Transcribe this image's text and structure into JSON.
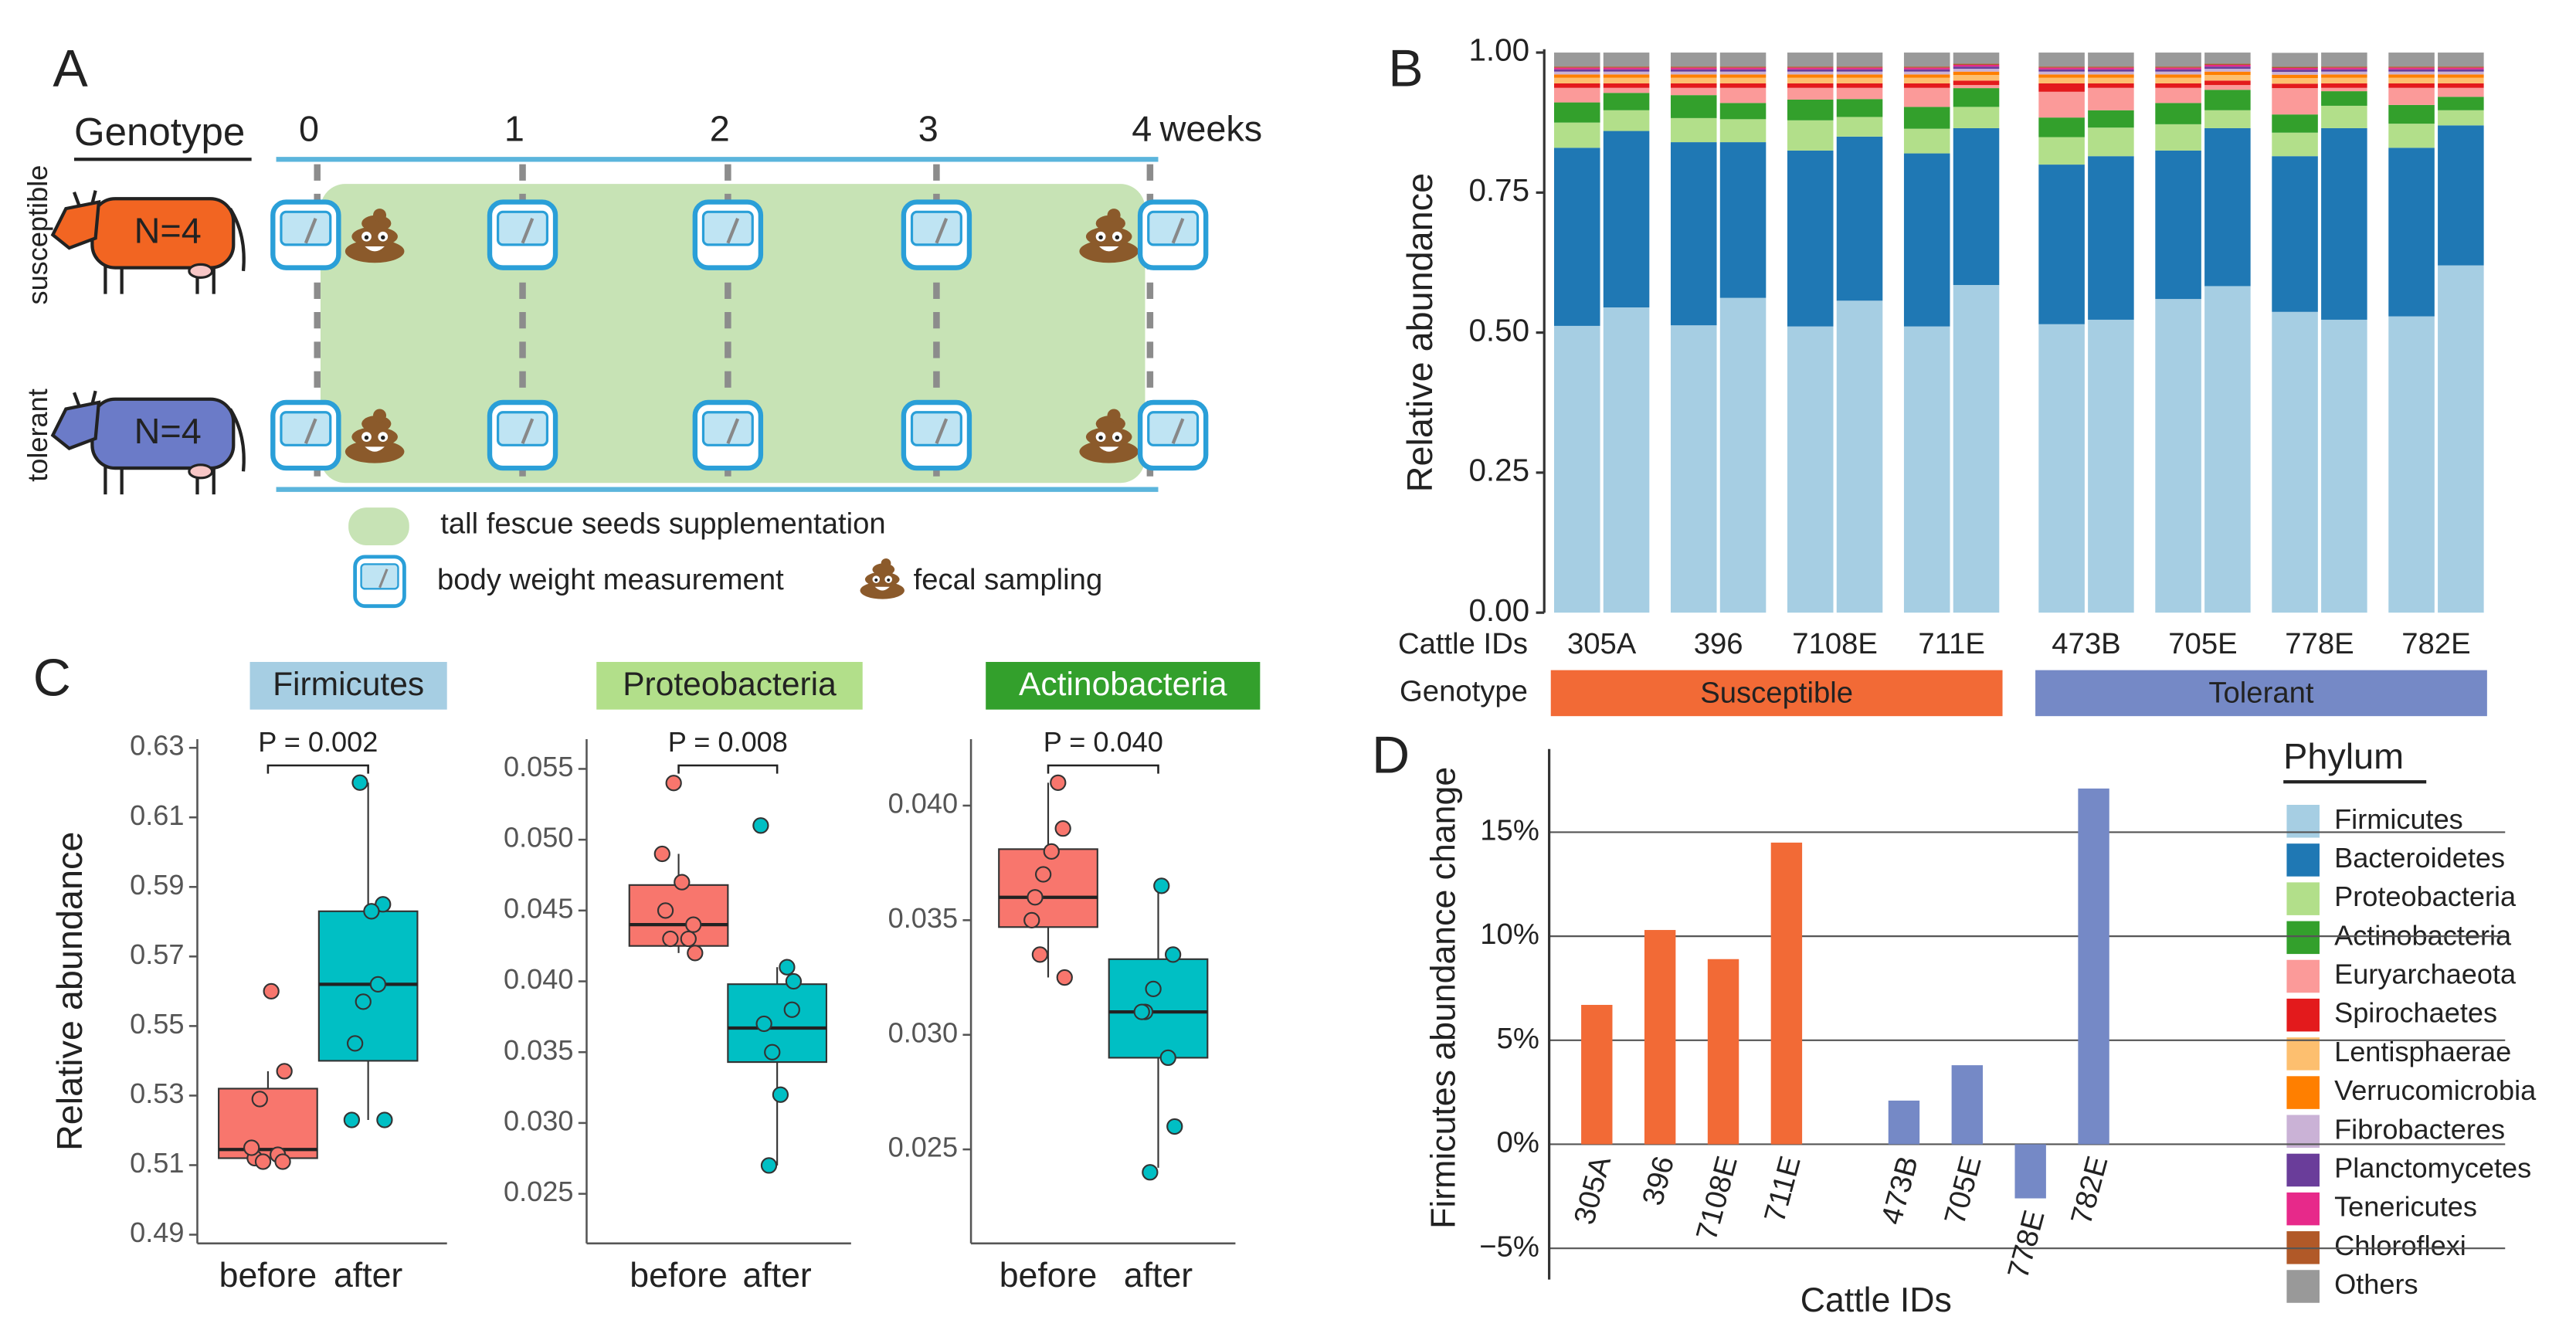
{
  "panel_labels": [
    "A",
    "B",
    "C",
    "D"
  ],
  "panel_a": {
    "header": "Genotype",
    "timepoints": [
      "0",
      "1",
      "2",
      "3",
      "4"
    ],
    "time_unit": "weeks",
    "groups": [
      {
        "name": "susceptible",
        "label": "N=4",
        "color": "#f26522"
      },
      {
        "name": "tolerant",
        "label": "N=4",
        "color": "#6b7bc8"
      }
    ],
    "legend": {
      "supplementation": "tall fescue seeds supplementation",
      "weight": "body weight measurement",
      "sampling": "fecal sampling"
    }
  },
  "chart_data": [
    {
      "type": "bar",
      "stacked": true,
      "ylabel": "Relative abundance",
      "xlabel": "Cattle IDs",
      "categories": [
        "305A",
        "396",
        "7108E",
        "711E",
        "473B",
        "705E",
        "778E",
        "782E"
      ],
      "ylim": [
        0,
        1
      ],
      "yticks": [
        {
          "value": 0,
          "label": "0.00"
        },
        0.25,
        {
          "value": 0.5,
          "label": "0.50"
        },
        0.75,
        {
          "value": 1,
          "label": "1.00"
        }
      ],
      "group_label": "Genotype",
      "groups": [
        {
          "name": "Susceptible",
          "color": "#f26a36",
          "members": [
            "305A",
            "396",
            "7108E",
            "711E"
          ]
        },
        {
          "name": "Tolerant",
          "color": "#7589c6",
          "members": [
            "473B",
            "705E",
            "778E",
            "782E"
          ]
        }
      ],
      "legend_title": "Phylum",
      "series": [
        {
          "name": "Firmicutes",
          "color": "#a6cee3",
          "values": [
            [
              0.512,
              0.545
            ],
            [
              0.513,
              0.562
            ],
            [
              0.511,
              0.557
            ],
            [
              0.511,
              0.585
            ],
            [
              0.515,
              0.523
            ],
            [
              0.56,
              0.583
            ],
            [
              0.537,
              0.523
            ],
            [
              0.529,
              0.62
            ]
          ]
        },
        {
          "name": "Bacteroidetes",
          "color": "#1f78b4",
          "values": [
            [
              0.318,
              0.315
            ],
            [
              0.327,
              0.278
            ],
            [
              0.314,
              0.293
            ],
            [
              0.309,
              0.28
            ],
            [
              0.285,
              0.292
            ],
            [
              0.265,
              0.282
            ],
            [
              0.278,
              0.342
            ],
            [
              0.301,
              0.25
            ]
          ]
        },
        {
          "name": "Proteobacteria",
          "color": "#b2df8a",
          "values": [
            [
              0.045,
              0.037
            ],
            [
              0.043,
              0.041
            ],
            [
              0.054,
              0.035
            ],
            [
              0.044,
              0.038
            ],
            [
              0.049,
              0.051
            ],
            [
              0.047,
              0.032
            ],
            [
              0.042,
              0.04
            ],
            [
              0.043,
              0.027
            ]
          ]
        },
        {
          "name": "Actinobacteria",
          "color": "#33a02c",
          "values": [
            [
              0.036,
              0.031
            ],
            [
              0.041,
              0.029
            ],
            [
              0.037,
              0.032
            ],
            [
              0.039,
              0.0335
            ],
            [
              0.035,
              0.031
            ],
            [
              0.038,
              0.0365
            ],
            [
              0.0325,
              0.026
            ],
            [
              0.0335,
              0.024
            ]
          ]
        },
        {
          "name": "Euryarchaeota",
          "color": "#fb9a99",
          "values": [
            [
              0.026,
              0.009
            ],
            [
              0.013,
              0.027
            ],
            [
              0.021,
              0.02
            ],
            [
              0.034,
              0.0055
            ],
            [
              0.046,
              0.04
            ],
            [
              0.027,
              0.0085
            ],
            [
              0.047,
              0.006
            ],
            [
              0.0305,
              0.016
            ]
          ]
        },
        {
          "name": "Spirochaetes",
          "color": "#e31a1c",
          "values": [
            [
              0.008,
              0.008
            ],
            [
              0.008,
              0.008
            ],
            [
              0.008,
              0.008
            ],
            [
              0.008,
              0.008
            ],
            [
              0.015,
              0.008
            ],
            [
              0.008,
              0.008
            ],
            [
              0.008,
              0.008
            ],
            [
              0.008,
              0.008
            ]
          ]
        },
        {
          "name": "Lentisphaerae",
          "color": "#fdbf6f",
          "values": [
            [
              0.01,
              0.01
            ],
            [
              0.01,
              0.01
            ],
            [
              0.01,
              0.01
            ],
            [
              0.01,
              0.01
            ],
            [
              0.01,
              0.01
            ],
            [
              0.01,
              0.01
            ],
            [
              0.01,
              0.01
            ],
            [
              0.01,
              0.01
            ]
          ]
        },
        {
          "name": "Verrucomicrobia",
          "color": "#ff7f00",
          "values": [
            [
              0.006,
              0.006
            ],
            [
              0.006,
              0.006
            ],
            [
              0.006,
              0.006
            ],
            [
              0.006,
              0.006
            ],
            [
              0.006,
              0.006
            ],
            [
              0.006,
              0.006
            ],
            [
              0.006,
              0.006
            ],
            [
              0.006,
              0.006
            ]
          ]
        },
        {
          "name": "Fibrobacteres",
          "color": "#cab2d6",
          "values": [
            [
              0.005,
              0.005
            ],
            [
              0.005,
              0.005
            ],
            [
              0.005,
              0.005
            ],
            [
              0.005,
              0.005
            ],
            [
              0.005,
              0.005
            ],
            [
              0.005,
              0.005
            ],
            [
              0.005,
              0.005
            ],
            [
              0.005,
              0.005
            ]
          ]
        },
        {
          "name": "Planctomycetes",
          "color": "#6a3d9a",
          "values": [
            [
              0.004,
              0.004
            ],
            [
              0.004,
              0.004
            ],
            [
              0.004,
              0.004
            ],
            [
              0.004,
              0.004
            ],
            [
              0.004,
              0.004
            ],
            [
              0.004,
              0.004
            ],
            [
              0.004,
              0.004
            ],
            [
              0.004,
              0.004
            ]
          ]
        },
        {
          "name": "Tenericutes",
          "color": "#e7298a",
          "values": [
            [
              0.003,
              0.003
            ],
            [
              0.003,
              0.003
            ],
            [
              0.003,
              0.003
            ],
            [
              0.003,
              0.003
            ],
            [
              0.003,
              0.003
            ],
            [
              0.003,
              0.003
            ],
            [
              0.003,
              0.003
            ],
            [
              0.003,
              0.003
            ]
          ]
        },
        {
          "name": "Chloroflexi",
          "color": "#b15928",
          "values": [
            [
              0.002,
              0.002
            ],
            [
              0.002,
              0.002
            ],
            [
              0.002,
              0.002
            ],
            [
              0.002,
              0.002
            ],
            [
              0.002,
              0.002
            ],
            [
              0.002,
              0.002
            ],
            [
              0.002,
              0.002
            ],
            [
              0.002,
              0.002
            ]
          ]
        },
        {
          "name": "Others",
          "color": "#999999",
          "values": [
            [
              0.025,
              0.025
            ],
            [
              0.025,
              0.025
            ],
            [
              0.025,
              0.025
            ],
            [
              0.025,
              0.02
            ],
            [
              0.025,
              0.025
            ],
            [
              0.025,
              0.02
            ],
            [
              0.025,
              0.025
            ],
            [
              0.025,
              0.025
            ]
          ]
        }
      ]
    },
    {
      "type": "box",
      "title": "Firmicutes",
      "title_color": "#a6cee3",
      "ylabel": "Relative abundance",
      "categories": [
        "before",
        "after"
      ],
      "colors": [
        "#f8766d",
        "#00bfc4"
      ],
      "ylim": [
        0.4875,
        0.6325
      ],
      "yticks": [
        0.49,
        0.51,
        0.53,
        0.55,
        0.57,
        0.59,
        0.61,
        0.63
      ],
      "boxes": [
        {
          "whisker_low": 0.511,
          "q1": 0.512,
          "median": 0.5145,
          "q3": 0.532,
          "whisker_high": 0.537
        },
        {
          "whisker_low": 0.523,
          "q1": 0.54,
          "median": 0.562,
          "q3": 0.583,
          "whisker_high": 0.62
        }
      ],
      "points": [
        [
          0.512,
          0.513,
          0.511,
          0.511,
          0.515,
          0.56,
          0.537,
          0.529
        ],
        [
          0.545,
          0.562,
          0.557,
          0.585,
          0.523,
          0.583,
          0.523,
          0.62
        ]
      ],
      "annotation": "P = 0.002"
    },
    {
      "type": "box",
      "title": "Proteobacteria",
      "title_color": "#b2df8a",
      "categories": [
        "before",
        "after"
      ],
      "colors": [
        "#f8766d",
        "#00bfc4"
      ],
      "ylim": [
        0.0215,
        0.0571
      ],
      "yticks": [
        0.025,
        {
          "value": 0.03,
          "label": "0.030"
        },
        0.035,
        {
          "value": 0.04,
          "label": "0.040"
        },
        0.045,
        {
          "value": 0.05,
          "label": "0.050"
        },
        0.055
      ],
      "boxes": [
        {
          "whisker_low": 0.042,
          "q1": 0.0425,
          "median": 0.044,
          "q3": 0.0468,
          "whisker_high": 0.049
        },
        {
          "whisker_low": 0.027,
          "q1": 0.0343,
          "median": 0.0367,
          "q3": 0.0398,
          "whisker_high": 0.041
        }
      ],
      "points": [
        [
          0.045,
          0.043,
          0.054,
          0.044,
          0.049,
          0.047,
          0.042,
          0.043
        ],
        [
          0.037,
          0.041,
          0.035,
          0.038,
          0.051,
          0.032,
          0.04,
          0.027
        ]
      ],
      "annotation": "P = 0.008"
    },
    {
      "type": "box",
      "title": "Actinobacteria",
      "title_color": "#33a02c",
      "categories": [
        "before",
        "after"
      ],
      "colors": [
        "#f8766d",
        "#00bfc4"
      ],
      "ylim": [
        0.0209,
        0.0429
      ],
      "yticks": [
        0.025,
        {
          "value": 0.03,
          "label": "0.030"
        },
        0.035,
        {
          "value": 0.04,
          "label": "0.040"
        }
      ],
      "boxes": [
        {
          "whisker_low": 0.0325,
          "q1": 0.0347,
          "median": 0.036,
          "q3": 0.0381,
          "whisker_high": 0.041
        },
        {
          "whisker_low": 0.0242,
          "q1": 0.029,
          "median": 0.031,
          "q3": 0.0333,
          "whisker_high": 0.0364
        }
      ],
      "points": [
        [
          0.036,
          0.041,
          0.037,
          0.039,
          0.035,
          0.038,
          0.0325,
          0.0335
        ],
        [
          0.031,
          0.029,
          0.032,
          0.0335,
          0.031,
          0.0365,
          0.026,
          0.024
        ]
      ],
      "annotation": "P = 0.040"
    },
    {
      "type": "bar",
      "ylabel": "Firmicutes abundance change",
      "xlabel": "Cattle IDs",
      "categories": [
        "305A",
        "396",
        "7108E",
        "711E",
        "473B",
        "705E",
        "778E",
        "782E"
      ],
      "values": [
        6.7,
        10.3,
        8.9,
        14.5,
        2.1,
        3.8,
        -2.6,
        17.1
      ],
      "colors": [
        "#f26a36",
        "#f26a36",
        "#f26a36",
        "#f26a36",
        "#7589c6",
        "#7589c6",
        "#7589c6",
        "#7589c6"
      ],
      "ylim": [
        -6.5,
        19
      ],
      "yticks": [
        {
          "value": -5,
          "label": "−5%"
        },
        {
          "value": 0,
          "label": "0%"
        },
        {
          "value": 5,
          "label": "5%"
        },
        {
          "value": 10,
          "label": "10%"
        },
        {
          "value": 15,
          "label": "15%"
        }
      ],
      "grid": true
    }
  ]
}
